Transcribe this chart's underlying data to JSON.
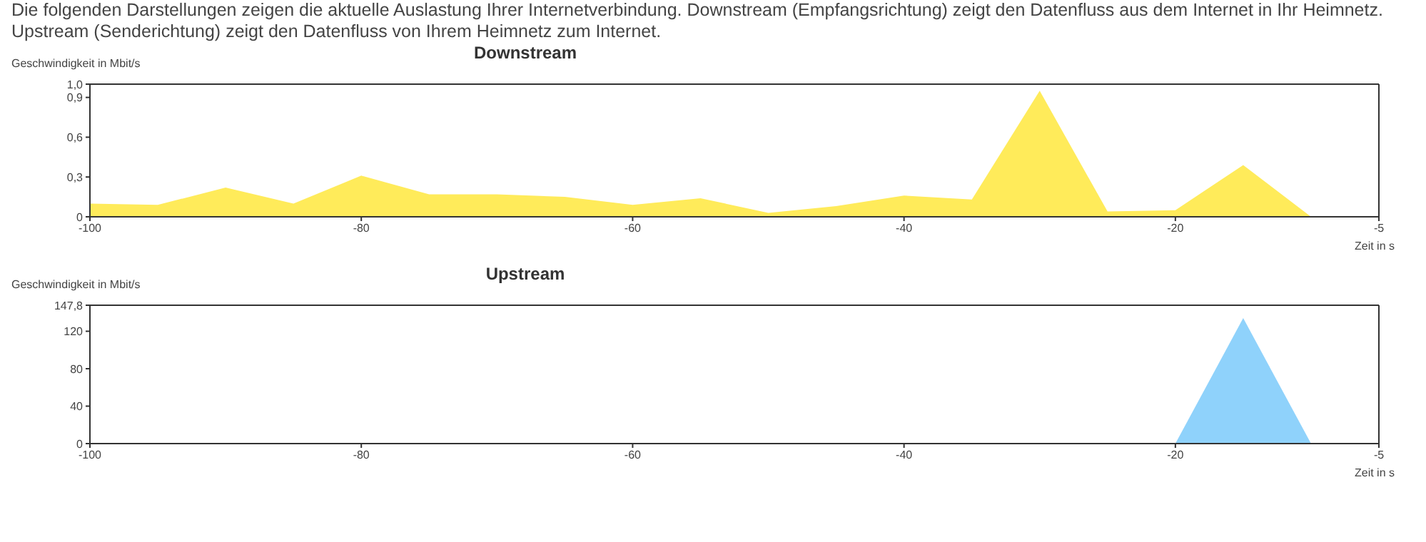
{
  "chart_data": [
    {
      "type": "area",
      "title": "Downstream",
      "annotations": [
        "Die folgenden Darstellungen zeigen die aktuelle Auslastung Ihrer Internetverbindung. Downstream (Empfangsrichtung) zeigt den Datenfluss aus dem Internet in Ihr Heimnetz. Upstream (Senderichtung) zeigt den Datenfluss von Ihrem Heimnetz zum Internet."
      ],
      "ylabel": "Geschwindigkeit in Mbit/s",
      "xlabel": "Zeit in s",
      "x": [
        -100,
        -95,
        -90,
        -85,
        -80,
        -75,
        -70,
        -65,
        -60,
        -55,
        -50,
        -45,
        -40,
        -35,
        -30,
        -25,
        -20,
        -15,
        -10
      ],
      "series": [
        {
          "color": "#ffeb5a",
          "values": [
            0.1,
            0.09,
            0.22,
            0.1,
            0.31,
            0.17,
            0.17,
            0.15,
            0.09,
            0.14,
            0.03,
            0.08,
            0.16,
            0.13,
            0.95,
            0.04,
            0.05,
            0.39,
            0
          ]
        }
      ],
      "xlim": [
        -100,
        -5
      ],
      "xticks": [
        -100,
        -80,
        -60,
        -40,
        -20,
        -5
      ],
      "ylim": [
        0,
        1.0
      ],
      "yticks": [
        0,
        {
          "value": 0.3,
          "label": "0,3"
        },
        {
          "value": 0.6,
          "label": "0,6"
        },
        {
          "value": 0.9,
          "label": "0,9"
        },
        {
          "value": 1.0,
          "label": "1,0"
        }
      ],
      "grid": false,
      "legend": false
    },
    {
      "type": "area",
      "title": "Upstream",
      "ylabel": "Geschwindigkeit in Mbit/s",
      "xlabel": "Zeit in s",
      "x": [
        -20,
        -15,
        -10
      ],
      "series": [
        {
          "color": "#8fd2fb",
          "values": [
            0,
            134,
            0
          ]
        }
      ],
      "xlim": [
        -100,
        -5
      ],
      "xticks": [
        -100,
        -80,
        -60,
        -40,
        -20,
        -5
      ],
      "ylim": [
        0,
        147.8
      ],
      "yticks": [
        0,
        40,
        80,
        120,
        {
          "value": 147.8,
          "label": "147,8"
        }
      ],
      "grid": false,
      "legend": false
    }
  ]
}
